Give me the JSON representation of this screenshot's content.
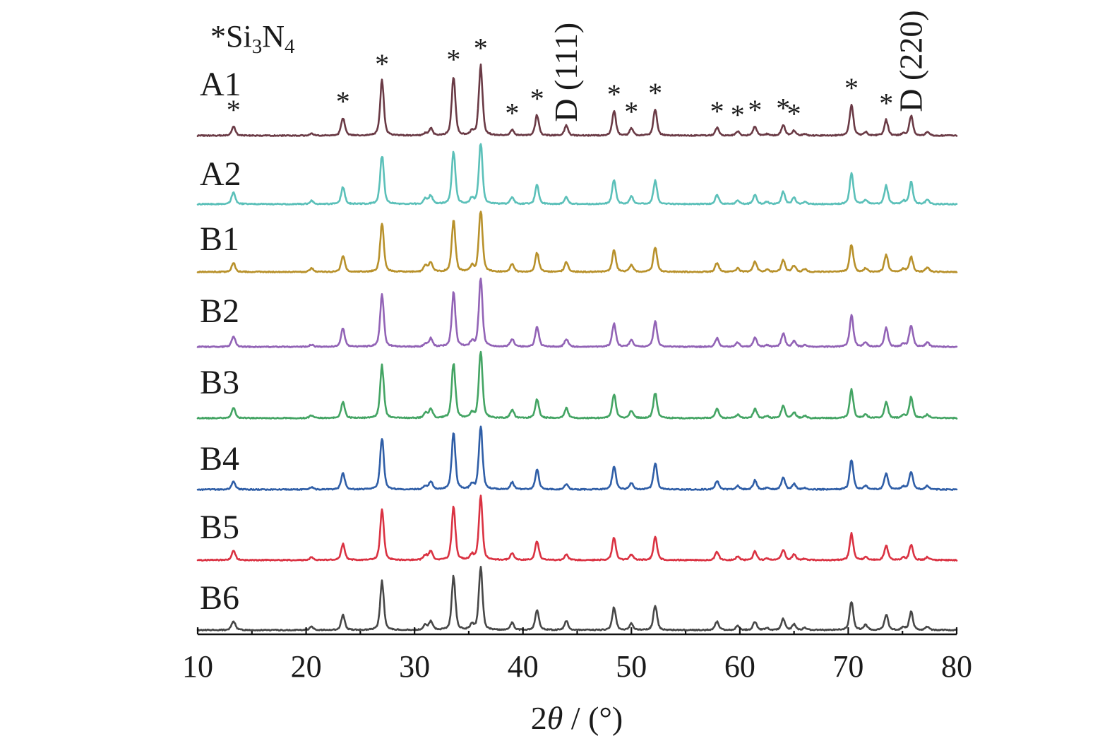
{
  "chart_data": {
    "type": "line",
    "stacked": true,
    "xlabel": "2θ / (°)",
    "xlim": [
      10,
      80
    ],
    "xticks": [
      "10",
      "20",
      "30",
      "40",
      "50",
      "60",
      "70",
      "80"
    ],
    "grid": false,
    "legend": "*Si3N4",
    "x": [
      13.3,
      20.5,
      23.4,
      27.0,
      31.0,
      31.5,
      33.6,
      35.3,
      36.1,
      39.0,
      41.3,
      44.0,
      48.4,
      50.0,
      52.2,
      57.9,
      59.8,
      61.4,
      62.5,
      64.0,
      65.0,
      66.0,
      70.3,
      71.6,
      73.5,
      75.1,
      75.8,
      77.3
    ],
    "series": [
      {
        "name": "A1",
        "color": "#6a3a45",
        "values": [
          13,
          3,
          25,
          78,
          3,
          10,
          84,
          6,
          100,
          8,
          29,
          14,
          35,
          10,
          37,
          11,
          6,
          13,
          2,
          15,
          7,
          2,
          44,
          5,
          22,
          3,
          28,
          5
        ]
      },
      {
        "name": "A2",
        "color": "#5bc0b9",
        "values": [
          17,
          5,
          24,
          69,
          8,
          12,
          75,
          8,
          86,
          10,
          27,
          10,
          34,
          11,
          33,
          13,
          5,
          13,
          3,
          17,
          9,
          3,
          43,
          6,
          26,
          4,
          31,
          6
        ]
      },
      {
        "name": "B1",
        "color": "#b8912b",
        "values": [
          13,
          5,
          23,
          69,
          9,
          14,
          72,
          8,
          88,
          11,
          27,
          14,
          31,
          10,
          35,
          13,
          5,
          15,
          3,
          17,
          9,
          4,
          39,
          5,
          24,
          4,
          21,
          6
        ]
      },
      {
        "name": "B2",
        "color": "#9263b6",
        "values": [
          15,
          3,
          26,
          74,
          4,
          12,
          76,
          7,
          95,
          11,
          28,
          11,
          34,
          10,
          36,
          12,
          6,
          13,
          2,
          19,
          8,
          2,
          45,
          6,
          27,
          4,
          31,
          6
        ]
      },
      {
        "name": "B3",
        "color": "#43a463",
        "values": [
          15,
          4,
          23,
          74,
          7,
          13,
          78,
          7,
          94,
          12,
          27,
          14,
          34,
          10,
          36,
          13,
          5,
          13,
          3,
          17,
          8,
          3,
          40,
          5,
          23,
          4,
          30,
          5
        ]
      },
      {
        "name": "B4",
        "color": "#2f5ea7",
        "values": [
          12,
          3,
          23,
          73,
          5,
          11,
          81,
          7,
          91,
          10,
          28,
          7,
          33,
          9,
          37,
          12,
          5,
          13,
          2,
          17,
          8,
          2,
          42,
          5,
          23,
          4,
          25,
          5
        ]
      },
      {
        "name": "B5",
        "color": "#da3242",
        "values": [
          14,
          4,
          23,
          72,
          7,
          13,
          76,
          7,
          89,
          10,
          27,
          8,
          32,
          8,
          32,
          12,
          5,
          12,
          2,
          15,
          8,
          2,
          38,
          4,
          21,
          3,
          22,
          4
        ]
      },
      {
        "name": "B6",
        "color": "#474747",
        "values": [
          13,
          5,
          21,
          69,
          7,
          12,
          76,
          7,
          89,
          10,
          28,
          13,
          32,
          9,
          35,
          12,
          6,
          12,
          3,
          16,
          8,
          3,
          41,
          7,
          22,
          4,
          26,
          5
        ]
      }
    ],
    "annotations": [
      {
        "x": 13.3,
        "label": "*"
      },
      {
        "x": 23.4,
        "label": "*"
      },
      {
        "x": 27.0,
        "label": "*"
      },
      {
        "x": 33.6,
        "label": "*"
      },
      {
        "x": 36.1,
        "label": "*"
      },
      {
        "x": 39.0,
        "label": "*"
      },
      {
        "x": 41.3,
        "label": "*"
      },
      {
        "x": 44.0,
        "label": "D (111)"
      },
      {
        "x": 48.4,
        "label": "*"
      },
      {
        "x": 50.0,
        "label": "*"
      },
      {
        "x": 52.2,
        "label": "*"
      },
      {
        "x": 57.9,
        "label": "*"
      },
      {
        "x": 59.8,
        "label": "*"
      },
      {
        "x": 61.4,
        "label": "*"
      },
      {
        "x": 64.0,
        "label": "*"
      },
      {
        "x": 65.0,
        "label": "*"
      },
      {
        "x": 70.3,
        "label": "*"
      },
      {
        "x": 73.5,
        "label": "*"
      },
      {
        "x": 75.8,
        "label": "D (220)"
      }
    ]
  }
}
